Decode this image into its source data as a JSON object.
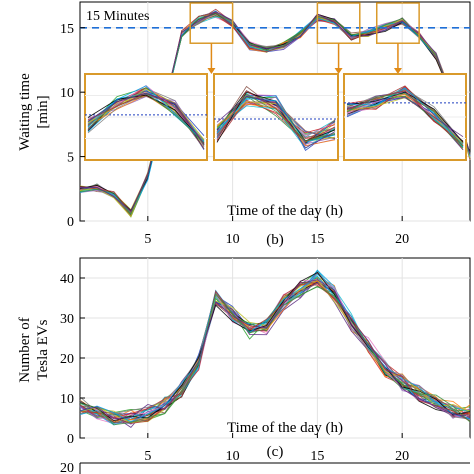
{
  "chart_data": [
    {
      "type": "line",
      "xlabel": "Time of the day (h)",
      "ylabel": "Waiting time [min]",
      "panel_label": "(b)",
      "xlim": [
        1,
        24
      ],
      "ylim": [
        0,
        17
      ],
      "xticks": [
        5,
        10,
        15,
        20
      ],
      "yticks": [
        0,
        5,
        10,
        15
      ],
      "reference_line": {
        "y": 15,
        "label": "15 Minutes",
        "color": "#1f6fd6"
      },
      "highlight_windows": [
        [
          7.5,
          10
        ],
        [
          15,
          17.5
        ],
        [
          18.5,
          21
        ]
      ],
      "x": [
        1,
        2,
        3,
        4,
        5,
        6,
        7,
        8,
        9,
        10,
        11,
        12,
        13,
        14,
        15,
        16,
        17,
        18,
        19,
        20,
        21,
        22,
        23,
        24
      ],
      "series_mean": [
        2.5,
        2.6,
        2.0,
        0.6,
        3.5,
        9.0,
        14.5,
        15.6,
        16.1,
        15.3,
        13.6,
        13.3,
        13.6,
        14.5,
        15.8,
        15.5,
        14.3,
        14.6,
        15.0,
        15.6,
        14.4,
        12.8,
        9.5,
        5.0
      ],
      "n_series": 30,
      "insets": [
        {
          "window": [
            7.5,
            10
          ],
          "reference_y": 15
        },
        {
          "window": [
            15,
            17.5
          ],
          "reference_y": 15
        },
        {
          "window": [
            18.5,
            21
          ],
          "reference_y": 15
        }
      ]
    },
    {
      "type": "line",
      "xlabel": "Time of the day (h)",
      "ylabel": "Number of Tesla EVs",
      "panel_label": "(c)",
      "xlim": [
        1,
        24
      ],
      "ylim": [
        0,
        45
      ],
      "xticks": [
        5,
        10,
        15,
        20
      ],
      "yticks": [
        0,
        10,
        20,
        30,
        40
      ],
      "x": [
        1,
        2,
        3,
        4,
        5,
        6,
        7,
        8,
        9,
        10,
        11,
        12,
        13,
        14,
        15,
        16,
        17,
        18,
        19,
        20,
        21,
        22,
        23,
        24
      ],
      "series_mean": [
        8,
        6,
        5,
        5,
        6,
        8,
        12,
        19,
        35,
        31,
        27,
        28,
        34,
        37,
        40,
        36,
        29,
        23,
        17,
        14,
        11,
        9,
        7,
        6
      ],
      "n_series": 30
    },
    {
      "type": "line",
      "partial": true,
      "ytick_visible": "20"
    }
  ],
  "palette": [
    "#1f3fbf",
    "#d62728",
    "#2ca02c",
    "#9467bd",
    "#ff7f0e",
    "#17becf",
    "#8c564b",
    "#e377c2",
    "#7f7f7f",
    "#bcbd22",
    "#000000",
    "#00a2e8",
    "#a83232",
    "#3d9140",
    "#5b2c83"
  ],
  "inset_border_color": "#d99a2b",
  "arrow_color": "#e08a17"
}
